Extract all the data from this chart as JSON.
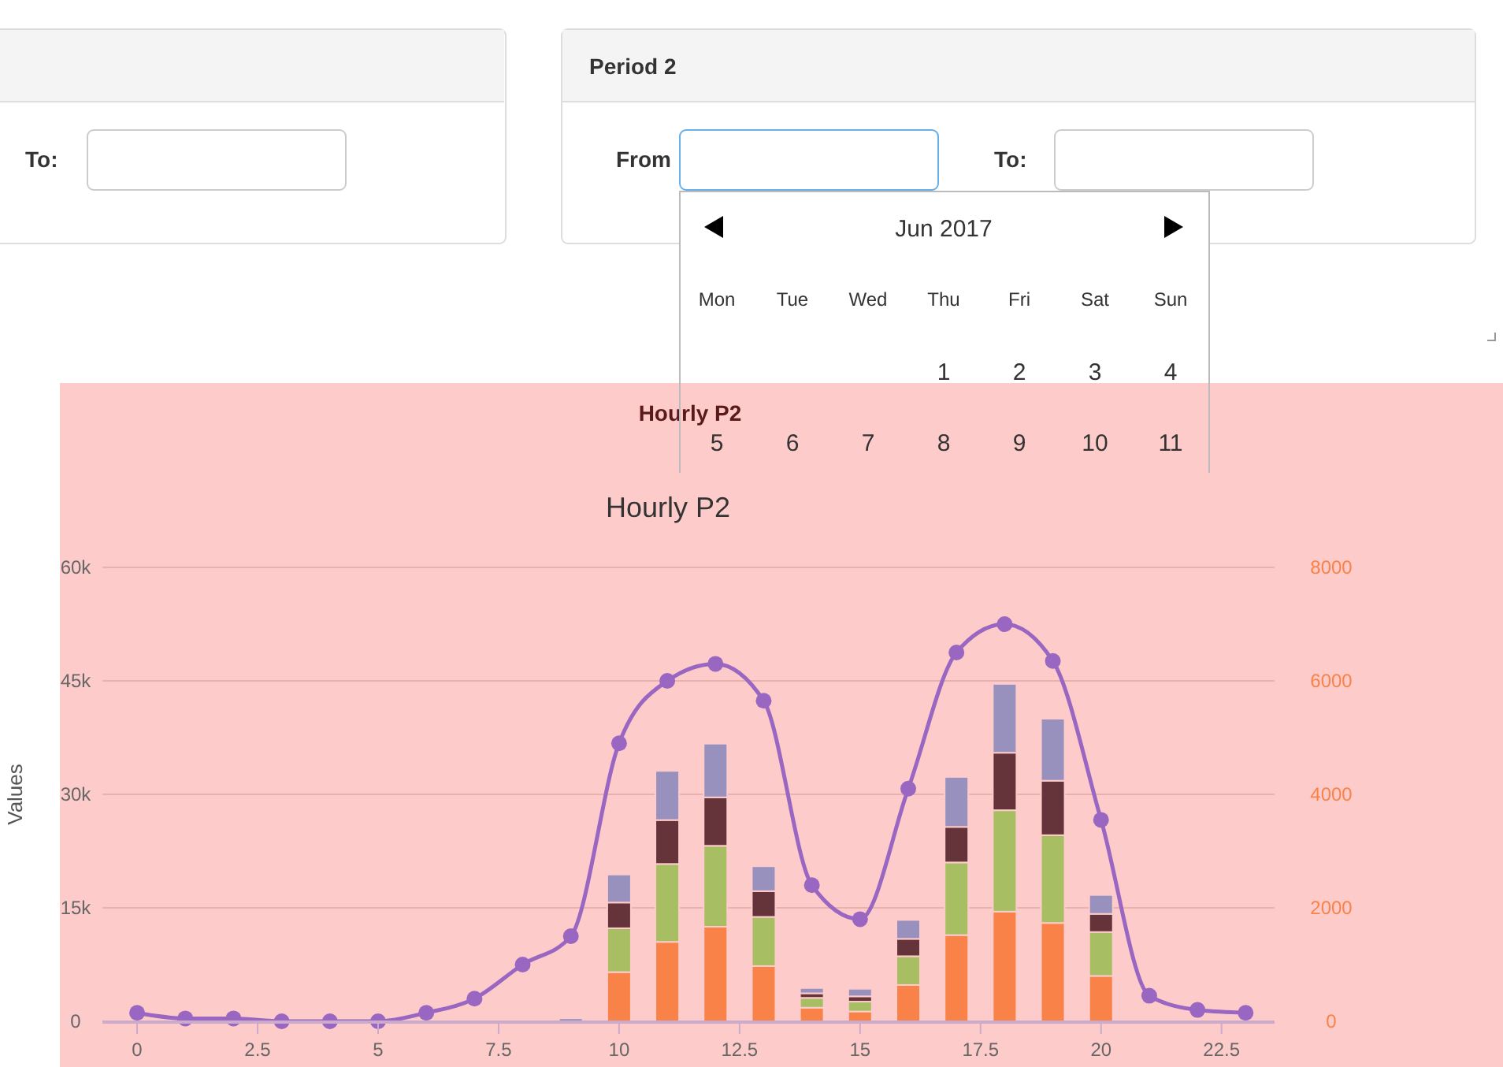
{
  "chart_data": {
    "type": "bar",
    "title": "Hourly P2",
    "subtitle": "Hourly P2",
    "ylabel": "Values",
    "annotations": [
      "To:",
      "Period 2",
      "From",
      "To:",
      "Jun 2017",
      "Mon",
      "Tue",
      "Wed",
      "Thu",
      "Fri",
      "Sat",
      "Sun",
      "1",
      "2",
      "3",
      "4",
      "5",
      "6",
      "7",
      "8",
      "9",
      "10",
      "11"
    ],
    "x": [
      0,
      1,
      2,
      3,
      4,
      5,
      6,
      7,
      8,
      9,
      10,
      11,
      12,
      13,
      14,
      15,
      16,
      17,
      18,
      19,
      20,
      21,
      22,
      23
    ],
    "stacked": true,
    "grid": "y",
    "xlim": [
      -0.72,
      23.6
    ],
    "xticks": [
      0,
      2.5,
      5,
      7.5,
      10,
      12.5,
      15,
      17.5,
      20,
      22.5
    ],
    "ylim": [
      0,
      60000
    ],
    "yticks": [
      {
        "value": 0,
        "label": "0"
      },
      {
        "value": 15000,
        "label": "15k"
      },
      {
        "value": 30000,
        "label": "30k"
      },
      {
        "value": 45000,
        "label": "45k"
      },
      {
        "value": 60000,
        "label": "60k"
      }
    ],
    "y2lim": [
      0,
      8000
    ],
    "y2ticks": [
      0,
      2000,
      4000,
      6000,
      8000
    ],
    "series": [
      {
        "color": "#f98248",
        "values": [
          0,
          0,
          0,
          0,
          0,
          0,
          0,
          0,
          null,
          0,
          6500,
          10500,
          12500,
          7300,
          1800,
          1300,
          4800,
          11400,
          14500,
          13000,
          6000,
          null,
          0,
          null
        ]
      },
      {
        "color": "#a8be62",
        "values": [
          0,
          0,
          0,
          0,
          0,
          0,
          0,
          0,
          0,
          0,
          5800,
          10300,
          10700,
          6500,
          1300,
          1300,
          3800,
          9600,
          13400,
          11600,
          5800,
          0,
          0,
          0
        ]
      },
      {
        "color": "#64343a",
        "values": [
          0,
          0,
          0,
          0,
          0,
          0,
          0,
          0,
          0,
          0,
          3400,
          5800,
          6400,
          3400,
          600,
          700,
          2300,
          4700,
          7600,
          7200,
          2400,
          0,
          0,
          0
        ]
      },
      {
        "color": "#9891be",
        "values": [
          0,
          0,
          0,
          0,
          0,
          0,
          0,
          0,
          0,
          400,
          3700,
          6500,
          7100,
          3300,
          700,
          1000,
          2500,
          6600,
          9100,
          8200,
          2500,
          0,
          0,
          0
        ]
      },
      {
        "type": "line",
        "axis": "y2",
        "color": "#9966c2",
        "marker": "circle",
        "values": [
          150,
          50,
          50,
          0,
          0,
          0,
          150,
          400,
          1000,
          1500,
          4900,
          6000,
          6300,
          5650,
          2400,
          1800,
          4100,
          6500,
          7000,
          6350,
          3550,
          450,
          200,
          150
        ]
      }
    ]
  }
}
